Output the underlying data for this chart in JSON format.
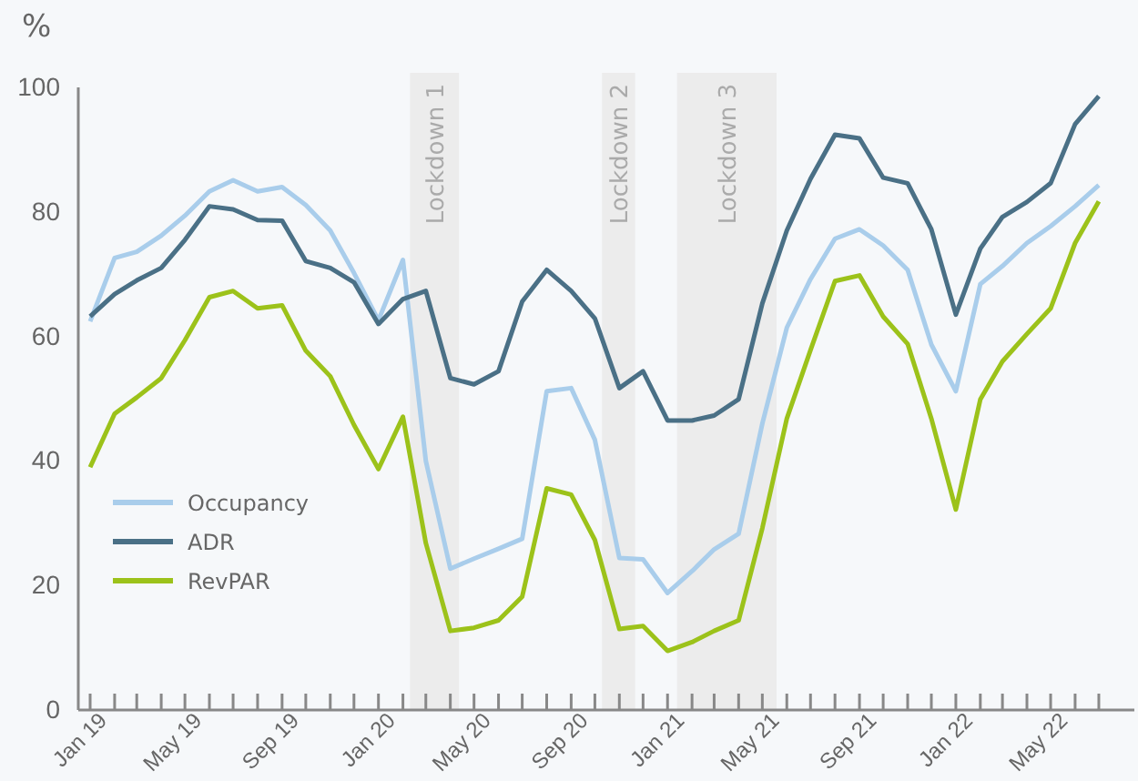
{
  "chart_data": {
    "type": "line",
    "ylabel": "%",
    "x": [
      "2019-01",
      "2019-02",
      "2019-03",
      "2019-04",
      "2019-05",
      "2019-06",
      "2019-07",
      "2019-08",
      "2019-09",
      "2019-10",
      "2019-11",
      "2019-12",
      "2020-01",
      "2020-02",
      "2020-03",
      "2020-04",
      "2020-05",
      "2020-06",
      "2020-07",
      "2020-08",
      "2020-09",
      "2020-10",
      "2020-11",
      "2020-12",
      "2021-01",
      "2021-02",
      "2021-03",
      "2021-04",
      "2021-05",
      "2021-06",
      "2021-07",
      "2021-08",
      "2021-09",
      "2021-10",
      "2021-11",
      "2021-12",
      "2022-01",
      "2022-02",
      "2022-03",
      "2022-04",
      "2022-05",
      "2022-06",
      "2022-07"
    ],
    "series": [
      {
        "name": "Occupancy",
        "color": "#a9cdeb",
        "values": [
          62.4,
          72.6,
          73.6,
          76.2,
          79.4,
          83.3,
          85.1,
          83.3,
          84.0,
          81.1,
          77.0,
          70.2,
          62.6,
          72.3,
          40.0,
          22.7,
          24.3,
          25.9,
          27.5,
          51.2,
          51.7,
          43.4,
          24.4,
          24.2,
          18.8,
          22.3,
          25.8,
          28.3,
          46,
          61.4,
          69.2,
          75.7,
          77.2,
          74.6,
          70.7,
          58.7,
          51.2,
          68.4,
          71.3,
          75.0,
          77.7,
          80.9,
          84.3
        ]
      },
      {
        "name": "ADR",
        "color": "#4a7086",
        "values": [
          63.2,
          66.8,
          69.0,
          71.0,
          75.5,
          80.9,
          80.4,
          78.7,
          78.6,
          72.1,
          71.0,
          68.7,
          62.0,
          66.0,
          67.3,
          53.3,
          52.3,
          54.4,
          65.6,
          70.7,
          67.3,
          62.9,
          51.7,
          54.4,
          46.5,
          46.5,
          47.3,
          49.9,
          65.3,
          77.0,
          85.3,
          92.4,
          91.8,
          85.5,
          84.6,
          77.2,
          63.5,
          74.1,
          79.2,
          81.6,
          84.6,
          94.1,
          98.6
        ]
      },
      {
        "name": "RevPAR",
        "color": "#9cc21a",
        "values": [
          39.0,
          47.6,
          50.2,
          53.3,
          59.4,
          66.3,
          67.3,
          64.5,
          65.0,
          57.7,
          53.6,
          45.8,
          38.7,
          47.1,
          26.8,
          12.7,
          13.2,
          14.4,
          18.2,
          35.6,
          34.6,
          27.3,
          13.0,
          13.5,
          9.5,
          10.9,
          12.7,
          14.4,
          29.2,
          46.8,
          57.8,
          68.9,
          69.8,
          63.2,
          58.8,
          46.8,
          32.2,
          49.9,
          56.0,
          60.4,
          64.5,
          75.0,
          81.7
        ]
      }
    ],
    "xlim": [
      "2018-12-17",
      "2022-08-15"
    ],
    "xticks": [
      {
        "value": "2019-01",
        "label": "Jan 19"
      },
      {
        "value": "2019-02",
        "label": null
      },
      {
        "value": "2019-03",
        "label": null
      },
      {
        "value": "2019-04",
        "label": null
      },
      {
        "value": "2019-05",
        "label": "May 19"
      },
      {
        "value": "2019-06",
        "label": null
      },
      {
        "value": "2019-07",
        "label": null
      },
      {
        "value": "2019-08",
        "label": null
      },
      {
        "value": "2019-09",
        "label": "Sep 19"
      },
      {
        "value": "2019-10",
        "label": null
      },
      {
        "value": "2019-11",
        "label": null
      },
      {
        "value": "2019-12",
        "label": null
      },
      {
        "value": "2020-01",
        "label": "Jan 20"
      },
      {
        "value": "2020-02",
        "label": null
      },
      {
        "value": "2020-03",
        "label": null
      },
      {
        "value": "2020-04",
        "label": null
      },
      {
        "value": "2020-05",
        "label": "May 20"
      },
      {
        "value": "2020-06",
        "label": null
      },
      {
        "value": "2020-07",
        "label": null
      },
      {
        "value": "2020-08",
        "label": null
      },
      {
        "value": "2020-09",
        "label": "Sep 20"
      },
      {
        "value": "2020-10",
        "label": null
      },
      {
        "value": "2020-11",
        "label": null
      },
      {
        "value": "2020-12",
        "label": null
      },
      {
        "value": "2021-01",
        "label": "Jan 21"
      },
      {
        "value": "2021-02",
        "label": null
      },
      {
        "value": "2021-03",
        "label": null
      },
      {
        "value": "2021-04",
        "label": null
      },
      {
        "value": "2021-05",
        "label": "May 21"
      },
      {
        "value": "2021-06",
        "label": null
      },
      {
        "value": "2021-07",
        "label": null
      },
      {
        "value": "2021-08",
        "label": null
      },
      {
        "value": "2021-09",
        "label": "Sep 21"
      },
      {
        "value": "2021-10",
        "label": null
      },
      {
        "value": "2021-11",
        "label": null
      },
      {
        "value": "2021-12",
        "label": null
      },
      {
        "value": "2022-01",
        "label": "Jan 22"
      },
      {
        "value": "2022-02",
        "label": null
      },
      {
        "value": "2022-03",
        "label": null
      },
      {
        "value": "2022-04",
        "label": null
      },
      {
        "value": "2022-05",
        "label": "May 22"
      },
      {
        "value": "2022-06",
        "label": null
      },
      {
        "value": "2022-07",
        "label": null
      }
    ],
    "ylim": [
      0,
      100
    ],
    "yticks": [
      0,
      20,
      40,
      60,
      80,
      100
    ],
    "bands": [
      {
        "axis": "x",
        "from": "2020-02-10",
        "to": "2020-04-12",
        "label": "Lockdown 1",
        "color": "#ececec"
      },
      {
        "axis": "x",
        "from": "2020-10-10",
        "to": "2020-11-21",
        "label": "Lockdown 2",
        "color": "#ececec"
      },
      {
        "axis": "x",
        "from": "2021-01-13",
        "to": "2021-05-19",
        "label": "Lockdown 3",
        "color": "#ececec"
      }
    ],
    "legend": "left",
    "grid": false,
    "marker": "none",
    "line_style": "solid"
  }
}
